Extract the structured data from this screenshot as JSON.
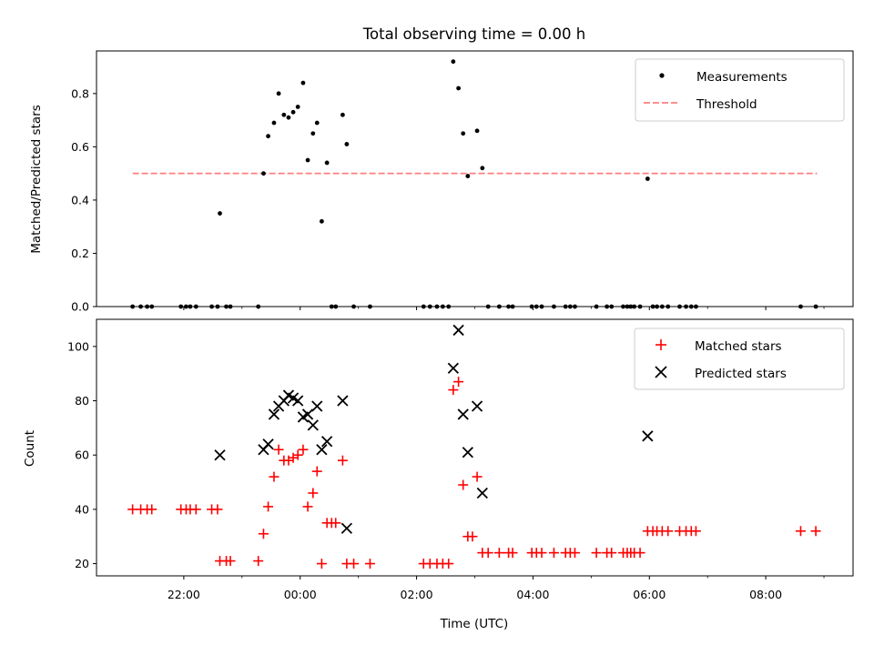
{
  "chart_data": {
    "title": "Total observing time = 0.00 h",
    "xlabel": "Time (UTC)",
    "x_unit": "hours since 00:00 UTC",
    "xlim": [
      -3.5,
      9.5
    ],
    "x_ticks": [
      {
        "value": -2,
        "label": "22:00"
      },
      {
        "value": 0,
        "label": "00:00"
      },
      {
        "value": 2,
        "label": "02:00"
      },
      {
        "value": 4,
        "label": "04:00"
      },
      {
        "value": 6,
        "label": "06:00"
      },
      {
        "value": 8,
        "label": "08:00"
      }
    ],
    "x_minor_ticks": [
      -1,
      1,
      3,
      5,
      7,
      9
    ],
    "panels": [
      {
        "type": "scatter",
        "ylabel": "Matched/Predicted stars",
        "ylim": [
          0,
          0.96
        ],
        "y_ticks": [
          {
            "value": 0.0,
            "label": "0.0"
          },
          {
            "value": 0.2,
            "label": "0.2"
          },
          {
            "value": 0.4,
            "label": "0.4"
          },
          {
            "value": 0.6,
            "label": "0.6"
          },
          {
            "value": 0.8,
            "label": "0.8"
          }
        ],
        "legend": {
          "position": "upper right",
          "entries": [
            {
              "label": "Measurements",
              "marker": "dot",
              "color": "#000000"
            },
            {
              "label": "Threshold",
              "marker": "dashed-line",
              "color": "#ff7f7f"
            }
          ]
        },
        "threshold": {
          "y": 0.5,
          "x_start": -2.88,
          "x_end": 8.88,
          "color": "#ff7f7f"
        },
        "measurements": [
          {
            "x": -2.88,
            "y": 0
          },
          {
            "x": -2.74,
            "y": 0
          },
          {
            "x": -2.63,
            "y": 0
          },
          {
            "x": -2.55,
            "y": 0
          },
          {
            "x": -2.05,
            "y": 0
          },
          {
            "x": -1.96,
            "y": 0
          },
          {
            "x": -1.89,
            "y": 0
          },
          {
            "x": -1.79,
            "y": 0
          },
          {
            "x": -1.52,
            "y": 0
          },
          {
            "x": -1.42,
            "y": 0
          },
          {
            "x": -1.27,
            "y": 0
          },
          {
            "x": -1.2,
            "y": 0
          },
          {
            "x": -0.72,
            "y": 0
          },
          {
            "x": 0.54,
            "y": 0
          },
          {
            "x": 0.61,
            "y": 0
          },
          {
            "x": 0.92,
            "y": 0
          },
          {
            "x": 1.2,
            "y": 0
          },
          {
            "x": 2.12,
            "y": 0
          },
          {
            "x": 2.23,
            "y": 0
          },
          {
            "x": 2.35,
            "y": 0
          },
          {
            "x": 2.45,
            "y": 0
          },
          {
            "x": 2.55,
            "y": 0
          },
          {
            "x": 3.23,
            "y": 0
          },
          {
            "x": 3.42,
            "y": 0
          },
          {
            "x": 3.58,
            "y": 0
          },
          {
            "x": 3.65,
            "y": 0
          },
          {
            "x": 3.98,
            "y": 0
          },
          {
            "x": 4.06,
            "y": 0
          },
          {
            "x": 4.15,
            "y": 0
          },
          {
            "x": 4.36,
            "y": 0
          },
          {
            "x": 4.56,
            "y": 0
          },
          {
            "x": 4.64,
            "y": 0
          },
          {
            "x": 4.72,
            "y": 0
          },
          {
            "x": 5.09,
            "y": 0
          },
          {
            "x": 5.27,
            "y": 0
          },
          {
            "x": 5.35,
            "y": 0
          },
          {
            "x": 5.55,
            "y": 0
          },
          {
            "x": 5.62,
            "y": 0
          },
          {
            "x": 5.68,
            "y": 0
          },
          {
            "x": 5.74,
            "y": 0
          },
          {
            "x": 5.84,
            "y": 0
          },
          {
            "x": 6.06,
            "y": 0
          },
          {
            "x": 6.13,
            "y": 0
          },
          {
            "x": 6.22,
            "y": 0
          },
          {
            "x": 6.32,
            "y": 0
          },
          {
            "x": 6.52,
            "y": 0
          },
          {
            "x": 6.63,
            "y": 0
          },
          {
            "x": 6.72,
            "y": 0
          },
          {
            "x": 6.8,
            "y": 0
          },
          {
            "x": 8.6,
            "y": 0
          },
          {
            "x": 8.86,
            "y": 0
          },
          {
            "x": -1.38,
            "y": 0.35
          },
          {
            "x": -0.63,
            "y": 0.5
          },
          {
            "x": -0.55,
            "y": 0.64
          },
          {
            "x": -0.45,
            "y": 0.69
          },
          {
            "x": -0.37,
            "y": 0.8
          },
          {
            "x": -0.28,
            "y": 0.72
          },
          {
            "x": -0.2,
            "y": 0.71
          },
          {
            "x": -0.12,
            "y": 0.73
          },
          {
            "x": -0.04,
            "y": 0.75
          },
          {
            "x": 0.05,
            "y": 0.84
          },
          {
            "x": 0.13,
            "y": 0.55
          },
          {
            "x": 0.22,
            "y": 0.65
          },
          {
            "x": 0.29,
            "y": 0.69
          },
          {
            "x": 0.37,
            "y": 0.32
          },
          {
            "x": 0.46,
            "y": 0.54
          },
          {
            "x": 0.73,
            "y": 0.72
          },
          {
            "x": 0.8,
            "y": 0.61
          },
          {
            "x": 2.63,
            "y": 0.92
          },
          {
            "x": 2.72,
            "y": 0.82
          },
          {
            "x": 2.8,
            "y": 0.65
          },
          {
            "x": 2.88,
            "y": 0.49
          },
          {
            "x": 3.04,
            "y": 0.66
          },
          {
            "x": 3.13,
            "y": 0.52
          },
          {
            "x": 5.97,
            "y": 0.48
          }
        ]
      },
      {
        "type": "scatter",
        "ylabel": "Count",
        "ylim": [
          15.5,
          110
        ],
        "y_ticks": [
          {
            "value": 20,
            "label": "20"
          },
          {
            "value": 40,
            "label": "40"
          },
          {
            "value": 60,
            "label": "60"
          },
          {
            "value": 80,
            "label": "80"
          },
          {
            "value": 100,
            "label": "100"
          }
        ],
        "legend": {
          "position": "upper right",
          "entries": [
            {
              "label": "Matched stars",
              "marker": "plus",
              "color": "#ff0000"
            },
            {
              "label": "Predicted stars",
              "marker": "x",
              "color": "#000000"
            }
          ]
        },
        "series": [
          {
            "name": "Matched stars",
            "marker": "plus",
            "color": "#ff0000",
            "points": [
              {
                "x": -2.88,
                "y": 40
              },
              {
                "x": -2.74,
                "y": 40
              },
              {
                "x": -2.63,
                "y": 40
              },
              {
                "x": -2.55,
                "y": 40
              },
              {
                "x": -2.05,
                "y": 40
              },
              {
                "x": -1.96,
                "y": 40
              },
              {
                "x": -1.89,
                "y": 40
              },
              {
                "x": -1.79,
                "y": 40
              },
              {
                "x": -1.52,
                "y": 40
              },
              {
                "x": -1.42,
                "y": 40
              },
              {
                "x": -1.38,
                "y": 21
              },
              {
                "x": -1.27,
                "y": 21
              },
              {
                "x": -1.2,
                "y": 21
              },
              {
                "x": -0.72,
                "y": 21
              },
              {
                "x": -0.63,
                "y": 31
              },
              {
                "x": -0.55,
                "y": 41
              },
              {
                "x": -0.45,
                "y": 52
              },
              {
                "x": -0.37,
                "y": 62
              },
              {
                "x": -0.28,
                "y": 58
              },
              {
                "x": -0.2,
                "y": 58
              },
              {
                "x": -0.12,
                "y": 59
              },
              {
                "x": -0.04,
                "y": 60
              },
              {
                "x": 0.05,
                "y": 62
              },
              {
                "x": 0.13,
                "y": 41
              },
              {
                "x": 0.22,
                "y": 46
              },
              {
                "x": 0.29,
                "y": 54
              },
              {
                "x": 0.37,
                "y": 20
              },
              {
                "x": 0.46,
                "y": 35
              },
              {
                "x": 0.54,
                "y": 35
              },
              {
                "x": 0.61,
                "y": 35
              },
              {
                "x": 0.73,
                "y": 58
              },
              {
                "x": 0.8,
                "y": 20
              },
              {
                "x": 0.92,
                "y": 20
              },
              {
                "x": 1.2,
                "y": 20
              },
              {
                "x": 2.12,
                "y": 20
              },
              {
                "x": 2.23,
                "y": 20
              },
              {
                "x": 2.35,
                "y": 20
              },
              {
                "x": 2.45,
                "y": 20
              },
              {
                "x": 2.55,
                "y": 20
              },
              {
                "x": 2.63,
                "y": 84
              },
              {
                "x": 2.72,
                "y": 87
              },
              {
                "x": 2.8,
                "y": 49
              },
              {
                "x": 2.88,
                "y": 30
              },
              {
                "x": 2.96,
                "y": 30
              },
              {
                "x": 3.04,
                "y": 52
              },
              {
                "x": 3.13,
                "y": 24
              },
              {
                "x": 3.23,
                "y": 24
              },
              {
                "x": 3.42,
                "y": 24
              },
              {
                "x": 3.58,
                "y": 24
              },
              {
                "x": 3.65,
                "y": 24
              },
              {
                "x": 3.98,
                "y": 24
              },
              {
                "x": 4.06,
                "y": 24
              },
              {
                "x": 4.15,
                "y": 24
              },
              {
                "x": 4.36,
                "y": 24
              },
              {
                "x": 4.56,
                "y": 24
              },
              {
                "x": 4.64,
                "y": 24
              },
              {
                "x": 4.72,
                "y": 24
              },
              {
                "x": 5.09,
                "y": 24
              },
              {
                "x": 5.27,
                "y": 24
              },
              {
                "x": 5.35,
                "y": 24
              },
              {
                "x": 5.55,
                "y": 24
              },
              {
                "x": 5.62,
                "y": 24
              },
              {
                "x": 5.68,
                "y": 24
              },
              {
                "x": 5.74,
                "y": 24
              },
              {
                "x": 5.84,
                "y": 24
              },
              {
                "x": 5.97,
                "y": 32
              },
              {
                "x": 6.06,
                "y": 32
              },
              {
                "x": 6.13,
                "y": 32
              },
              {
                "x": 6.22,
                "y": 32
              },
              {
                "x": 6.32,
                "y": 32
              },
              {
                "x": 6.52,
                "y": 32
              },
              {
                "x": 6.63,
                "y": 32
              },
              {
                "x": 6.72,
                "y": 32
              },
              {
                "x": 6.8,
                "y": 32
              },
              {
                "x": 8.6,
                "y": 32
              },
              {
                "x": 8.86,
                "y": 32
              }
            ]
          },
          {
            "name": "Predicted stars",
            "marker": "x",
            "color": "#000000",
            "points": [
              {
                "x": -1.38,
                "y": 60
              },
              {
                "x": -0.63,
                "y": 62
              },
              {
                "x": -0.55,
                "y": 64
              },
              {
                "x": -0.45,
                "y": 75
              },
              {
                "x": -0.37,
                "y": 78
              },
              {
                "x": -0.28,
                "y": 80
              },
              {
                "x": -0.2,
                "y": 82
              },
              {
                "x": -0.12,
                "y": 81
              },
              {
                "x": -0.04,
                "y": 80
              },
              {
                "x": 0.05,
                "y": 74
              },
              {
                "x": 0.13,
                "y": 75
              },
              {
                "x": 0.22,
                "y": 71
              },
              {
                "x": 0.29,
                "y": 78
              },
              {
                "x": 0.37,
                "y": 62
              },
              {
                "x": 0.46,
                "y": 65
              },
              {
                "x": 0.73,
                "y": 80
              },
              {
                "x": 0.8,
                "y": 33
              },
              {
                "x": 2.63,
                "y": 92
              },
              {
                "x": 2.72,
                "y": 106
              },
              {
                "x": 2.8,
                "y": 75
              },
              {
                "x": 2.88,
                "y": 61
              },
              {
                "x": 3.04,
                "y": 78
              },
              {
                "x": 3.13,
                "y": 46
              },
              {
                "x": 5.97,
                "y": 67
              }
            ]
          }
        ]
      }
    ]
  }
}
